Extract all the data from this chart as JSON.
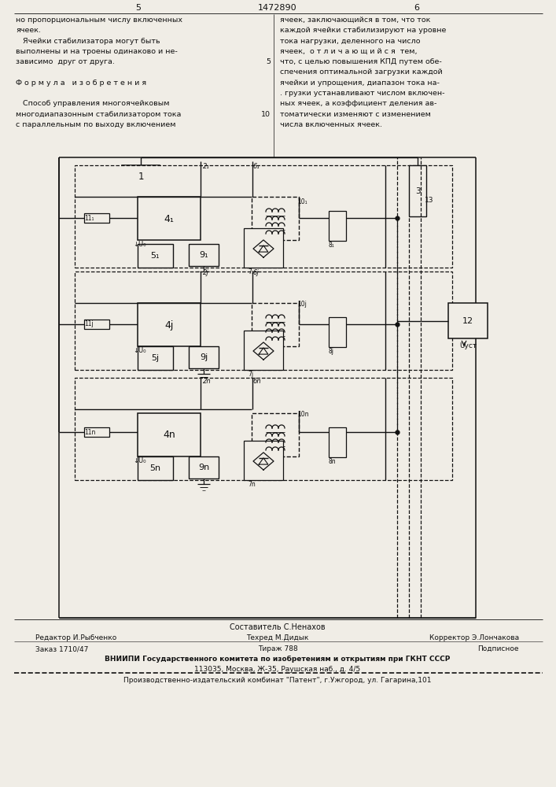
{
  "page_title": "1472890",
  "page_left_num": "5",
  "page_right_num": "6",
  "left_col_text": [
    "но пропорциональным числу включенных",
    "ячеек.",
    "   Ячейки стабилизатора могут быть",
    "выполнены и на троены одинаково и не-",
    "зависимо  друг от друга.",
    "",
    "Ф о р м у л а   и з о б р е т е н и я",
    "",
    "   Способ управления многоячейковым",
    "многодиапазонным стабилизатором тока",
    "с параллельным по выходу включением"
  ],
  "right_col_text": [
    "ячеек, заключающийся в том, что ток",
    "каждой ячейки стабилизируют на уровне",
    "тока нагрузки, деленного на число",
    "ячеек,  о т л и ч а ю щ и й с я  тем,",
    "что, с целью повышения КПД путем обе-",
    "спечения оптимальной загрузки каждой",
    "ячейки и упрощения, диапазон тока на-",
    ". грузки устанавливают числом включен-",
    "ных ячеек, а коэффициент деления ав-",
    "томатически изменяют с изменением",
    "числа включенных ячеек."
  ],
  "line_num_5": "5",
  "line_num_10": "10",
  "bottom_editor": "Редактор И.Рыбченко",
  "bottom_composer": "Составитель С.Ненахов",
  "bottom_tech": "Техред М.Дидык",
  "bottom_corrector": "Корректор Э.Лончакова",
  "bottom_order": "Заказ 1710/47",
  "bottom_tiraz": "Тираж 788",
  "bottom_podp": "Подписное",
  "bottom_vnipi": "ВНИИПИ Государственного комитета по изобретениям и открытиям при ГКНТ СССР",
  "bottom_addr": "113035, Москва, Ж-35, Раушская наб., д. 4/5",
  "bottom_factory": "Производственно-издательский комбинат \"Патент\", г.Ужгород, ул. Гагарина,101",
  "bg_color": "#f0ede6",
  "text_color": "#111111",
  "line_color": "#111111"
}
